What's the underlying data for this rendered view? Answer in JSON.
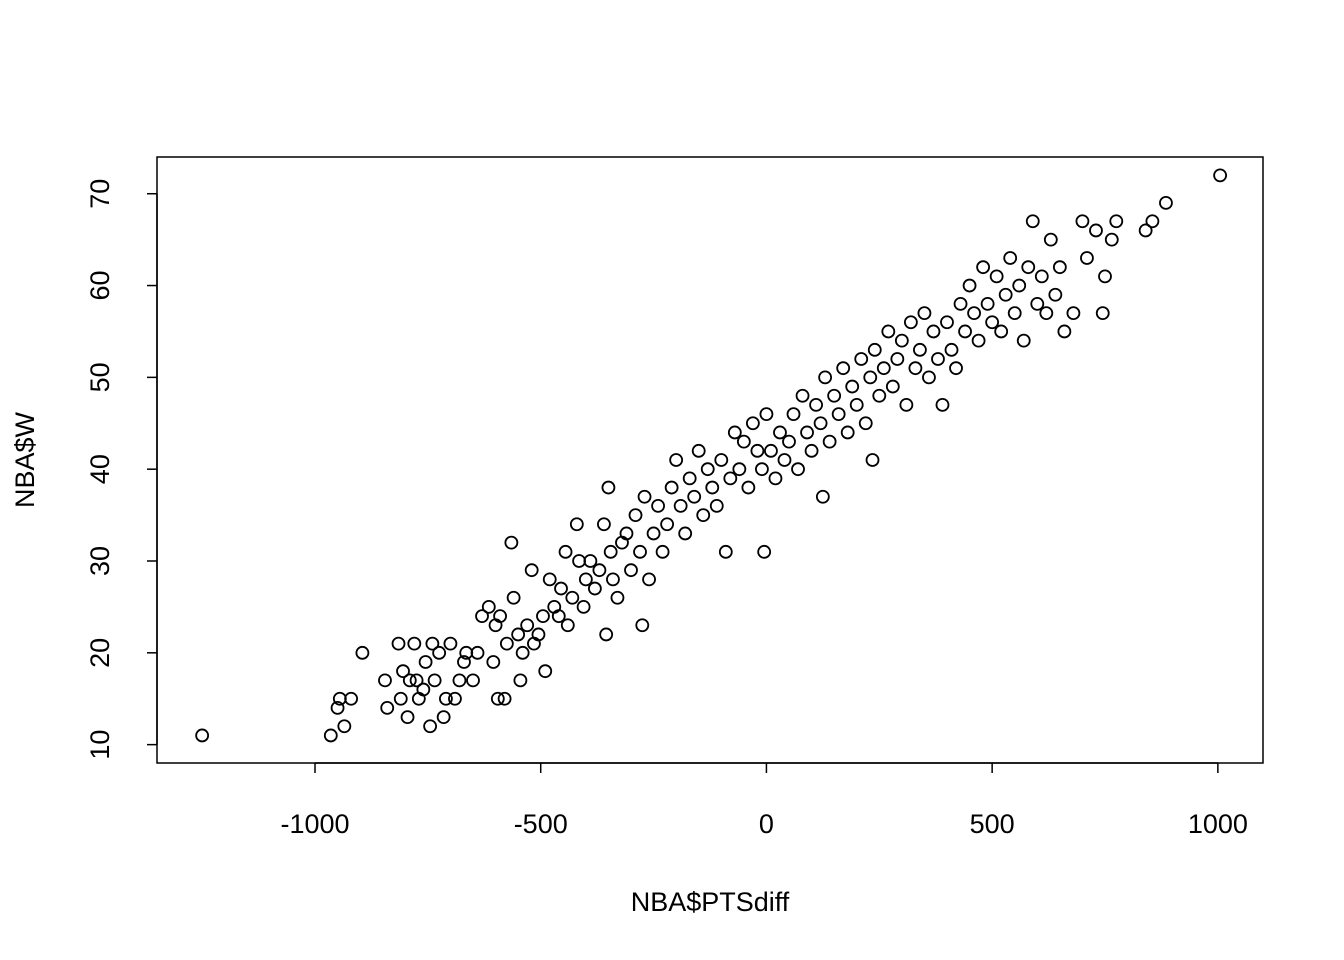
{
  "chart_data": {
    "type": "scatter",
    "title": "",
    "xlabel": "NBA$PTSdiff",
    "ylabel": "NBA$W",
    "xlim": [
      -1350,
      1100
    ],
    "ylim": [
      8,
      74
    ],
    "x_ticks": [
      -1000,
      -500,
      0,
      500,
      1000
    ],
    "x_tick_labels": [
      "-1000",
      "-500",
      "0",
      "500",
      "1000"
    ],
    "y_ticks": [
      10,
      20,
      30,
      40,
      50,
      60,
      70
    ],
    "y_tick_labels": [
      "10",
      "20",
      "30",
      "40",
      "50",
      "60",
      "70"
    ],
    "grid": false,
    "legend": "none",
    "marker": "open-circle",
    "points": [
      [
        -1250,
        11
      ],
      [
        -965,
        11
      ],
      [
        -950,
        14
      ],
      [
        -945,
        15
      ],
      [
        -935,
        12
      ],
      [
        -920,
        15
      ],
      [
        -895,
        20
      ],
      [
        -845,
        17
      ],
      [
        -840,
        14
      ],
      [
        -815,
        21
      ],
      [
        -810,
        15
      ],
      [
        -805,
        18
      ],
      [
        -795,
        13
      ],
      [
        -790,
        17
      ],
      [
        -780,
        21
      ],
      [
        -775,
        17
      ],
      [
        -770,
        15
      ],
      [
        -760,
        16
      ],
      [
        -755,
        19
      ],
      [
        -745,
        12
      ],
      [
        -740,
        21
      ],
      [
        -735,
        17
      ],
      [
        -725,
        20
      ],
      [
        -715,
        13
      ],
      [
        -710,
        15
      ],
      [
        -700,
        21
      ],
      [
        -690,
        15
      ],
      [
        -680,
        17
      ],
      [
        -670,
        19
      ],
      [
        -665,
        20
      ],
      [
        -650,
        17
      ],
      [
        -640,
        20
      ],
      [
        -630,
        24
      ],
      [
        -615,
        25
      ],
      [
        -605,
        19
      ],
      [
        -600,
        23
      ],
      [
        -595,
        15
      ],
      [
        -590,
        24
      ],
      [
        -580,
        15
      ],
      [
        -575,
        21
      ],
      [
        -565,
        32
      ],
      [
        -560,
        26
      ],
      [
        -550,
        22
      ],
      [
        -545,
        17
      ],
      [
        -540,
        20
      ],
      [
        -530,
        23
      ],
      [
        -520,
        29
      ],
      [
        -515,
        21
      ],
      [
        -505,
        22
      ],
      [
        -495,
        24
      ],
      [
        -490,
        18
      ],
      [
        -480,
        28
      ],
      [
        -470,
        25
      ],
      [
        -460,
        24
      ],
      [
        -455,
        27
      ],
      [
        -445,
        31
      ],
      [
        -440,
        23
      ],
      [
        -430,
        26
      ],
      [
        -420,
        34
      ],
      [
        -415,
        30
      ],
      [
        -405,
        25
      ],
      [
        -400,
        28
      ],
      [
        -390,
        30
      ],
      [
        -380,
        27
      ],
      [
        -370,
        29
      ],
      [
        -360,
        34
      ],
      [
        -355,
        22
      ],
      [
        -350,
        38
      ],
      [
        -345,
        31
      ],
      [
        -340,
        28
      ],
      [
        -330,
        26
      ],
      [
        -320,
        32
      ],
      [
        -310,
        33
      ],
      [
        -300,
        29
      ],
      [
        -290,
        35
      ],
      [
        -280,
        31
      ],
      [
        -275,
        23
      ],
      [
        -270,
        37
      ],
      [
        -260,
        28
      ],
      [
        -250,
        33
      ],
      [
        -240,
        36
      ],
      [
        -230,
        31
      ],
      [
        -220,
        34
      ],
      [
        -210,
        38
      ],
      [
        -200,
        41
      ],
      [
        -190,
        36
      ],
      [
        -180,
        33
      ],
      [
        -170,
        39
      ],
      [
        -160,
        37
      ],
      [
        -150,
        42
      ],
      [
        -140,
        35
      ],
      [
        -130,
        40
      ],
      [
        -120,
        38
      ],
      [
        -110,
        36
      ],
      [
        -100,
        41
      ],
      [
        -90,
        31
      ],
      [
        -80,
        39
      ],
      [
        -70,
        44
      ],
      [
        -60,
        40
      ],
      [
        -50,
        43
      ],
      [
        -40,
        38
      ],
      [
        -30,
        45
      ],
      [
        -20,
        42
      ],
      [
        -10,
        40
      ],
      [
        -5,
        31
      ],
      [
        0,
        46
      ],
      [
        10,
        42
      ],
      [
        20,
        39
      ],
      [
        30,
        44
      ],
      [
        40,
        41
      ],
      [
        50,
        43
      ],
      [
        60,
        46
      ],
      [
        70,
        40
      ],
      [
        80,
        48
      ],
      [
        90,
        44
      ],
      [
        100,
        42
      ],
      [
        110,
        47
      ],
      [
        120,
        45
      ],
      [
        125,
        37
      ],
      [
        130,
        50
      ],
      [
        140,
        43
      ],
      [
        150,
        48
      ],
      [
        160,
        46
      ],
      [
        170,
        51
      ],
      [
        180,
        44
      ],
      [
        190,
        49
      ],
      [
        200,
        47
      ],
      [
        210,
        52
      ],
      [
        220,
        45
      ],
      [
        230,
        50
      ],
      [
        235,
        41
      ],
      [
        240,
        53
      ],
      [
        250,
        48
      ],
      [
        260,
        51
      ],
      [
        270,
        55
      ],
      [
        280,
        49
      ],
      [
        290,
        52
      ],
      [
        300,
        54
      ],
      [
        310,
        47
      ],
      [
        320,
        56
      ],
      [
        330,
        51
      ],
      [
        340,
        53
      ],
      [
        350,
        57
      ],
      [
        360,
        50
      ],
      [
        370,
        55
      ],
      [
        380,
        52
      ],
      [
        390,
        47
      ],
      [
        400,
        56
      ],
      [
        410,
        53
      ],
      [
        420,
        51
      ],
      [
        430,
        58
      ],
      [
        440,
        55
      ],
      [
        450,
        60
      ],
      [
        460,
        57
      ],
      [
        470,
        54
      ],
      [
        480,
        62
      ],
      [
        490,
        58
      ],
      [
        500,
        56
      ],
      [
        510,
        61
      ],
      [
        520,
        55
      ],
      [
        530,
        59
      ],
      [
        540,
        63
      ],
      [
        550,
        57
      ],
      [
        560,
        60
      ],
      [
        570,
        54
      ],
      [
        580,
        62
      ],
      [
        590,
        67
      ],
      [
        600,
        58
      ],
      [
        610,
        61
      ],
      [
        620,
        57
      ],
      [
        630,
        65
      ],
      [
        640,
        59
      ],
      [
        650,
        62
      ],
      [
        660,
        55
      ],
      [
        680,
        57
      ],
      [
        700,
        67
      ],
      [
        710,
        63
      ],
      [
        730,
        66
      ],
      [
        745,
        57
      ],
      [
        750,
        61
      ],
      [
        765,
        65
      ],
      [
        775,
        67
      ],
      [
        840,
        66
      ],
      [
        855,
        67
      ],
      [
        885,
        69
      ],
      [
        1005,
        72
      ]
    ]
  }
}
